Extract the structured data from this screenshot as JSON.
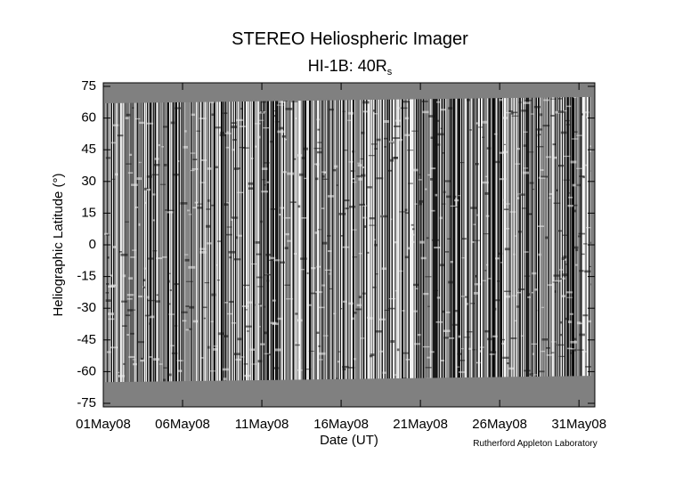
{
  "chart_data": {
    "type": "image",
    "title": "STEREO Heliospheric Imager",
    "subtitle": "HI-1B: 40R",
    "subtitle_subscript": "s",
    "y_label": "Heliographic Latitude (°)",
    "x_label": "Date (UT)",
    "credit": "Rutherford Appleton Laboratory",
    "xlim": [
      1,
      32
    ],
    "xticks": [
      {
        "value": 1,
        "label": "01May08"
      },
      {
        "value": 6,
        "label": "06May08"
      },
      {
        "value": 11,
        "label": "11May08"
      },
      {
        "value": 16,
        "label": "16May08"
      },
      {
        "value": 21,
        "label": "21May08"
      },
      {
        "value": 26,
        "label": "26May08"
      },
      {
        "value": 31,
        "label": "31May08"
      }
    ],
    "ylim": [
      -75,
      75
    ],
    "yticks": [
      -75,
      -60,
      -45,
      -30,
      -15,
      0,
      15,
      30,
      45,
      60,
      75
    ],
    "coverage_top": [
      67,
      70
    ],
    "coverage_bottom": [
      -65,
      -62
    ],
    "background_color": "#808080"
  }
}
